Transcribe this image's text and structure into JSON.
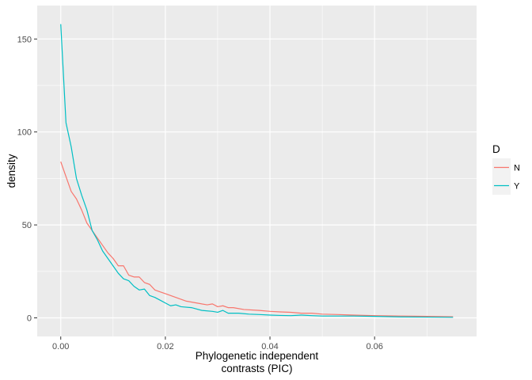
{
  "chart_data": {
    "type": "line",
    "title": "",
    "xlabel_lines": [
      "Phylogenetic independent",
      "contrasts (PIC)"
    ],
    "ylabel": "density",
    "xlim": [
      -0.0045,
      0.0795
    ],
    "ylim": [
      -10,
      168
    ],
    "x_ticks": [
      0.0,
      0.02,
      0.04,
      0.06
    ],
    "x_tick_labels": [
      "0.00",
      "0.02",
      "0.04",
      "0.06"
    ],
    "y_ticks": [
      0,
      50,
      100,
      150
    ],
    "y_tick_labels": [
      "0",
      "50",
      "100",
      "150"
    ],
    "grid": true,
    "legend": {
      "title": "D",
      "position": "right",
      "entries": [
        {
          "label": "N",
          "color": "#F8766D"
        },
        {
          "label": "Y",
          "color": "#00BFC4"
        }
      ]
    },
    "series": [
      {
        "name": "N",
        "color": "#F8766D",
        "x": [
          0.0,
          0.001,
          0.002,
          0.003,
          0.004,
          0.005,
          0.006,
          0.007,
          0.008,
          0.009,
          0.01,
          0.011,
          0.012,
          0.013,
          0.014,
          0.015,
          0.016,
          0.017,
          0.018,
          0.019,
          0.02,
          0.022,
          0.024,
          0.026,
          0.028,
          0.029,
          0.03,
          0.031,
          0.032,
          0.033,
          0.035,
          0.038,
          0.04,
          0.042,
          0.044,
          0.046,
          0.048,
          0.05,
          0.053,
          0.056,
          0.06,
          0.065,
          0.07,
          0.075
        ],
        "y": [
          84,
          76,
          68,
          64,
          58,
          51,
          47,
          43,
          39,
          35,
          32,
          28,
          28,
          23,
          22,
          22,
          19,
          18,
          15,
          14,
          13,
          11,
          9,
          8,
          7,
          7.5,
          6,
          6.5,
          5.5,
          5.5,
          4.5,
          4,
          3.5,
          3.2,
          3,
          2.5,
          2.5,
          2,
          1.8,
          1.5,
          1.2,
          1,
          0.8,
          0.6
        ]
      },
      {
        "name": "Y",
        "color": "#00BFC4",
        "x": [
          0.0,
          0.001,
          0.002,
          0.003,
          0.004,
          0.005,
          0.006,
          0.007,
          0.008,
          0.009,
          0.01,
          0.011,
          0.012,
          0.013,
          0.014,
          0.015,
          0.016,
          0.017,
          0.018,
          0.019,
          0.02,
          0.021,
          0.022,
          0.023,
          0.025,
          0.027,
          0.029,
          0.03,
          0.031,
          0.032,
          0.034,
          0.036,
          0.038,
          0.04,
          0.042,
          0.044,
          0.046,
          0.048,
          0.05,
          0.053,
          0.056,
          0.06,
          0.065,
          0.07,
          0.075
        ],
        "y": [
          158,
          105,
          92,
          75,
          66,
          58,
          47,
          42,
          36,
          32,
          28,
          24,
          21,
          20,
          17,
          15,
          15.5,
          12,
          11,
          9.5,
          8,
          6.5,
          7,
          6,
          5.5,
          4,
          3.5,
          3,
          4,
          2.5,
          2.5,
          2,
          1.8,
          1.5,
          1.3,
          1.2,
          1.5,
          1.2,
          1,
          1,
          1,
          0.8,
          0.5,
          0.4,
          0.3
        ]
      }
    ]
  }
}
